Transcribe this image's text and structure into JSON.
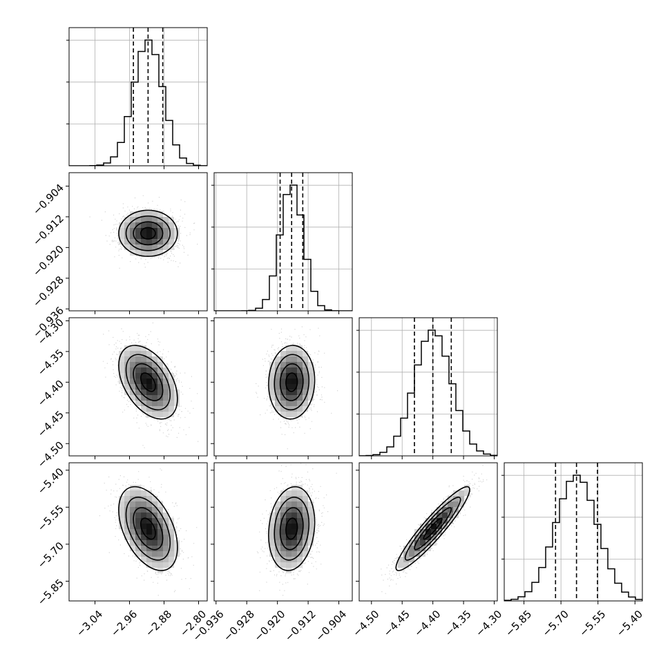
{
  "chart_data": {
    "type": "corner",
    "parameters": [
      {
        "xlim": [
          -3.1,
          -2.78
        ],
        "ticks": [
          -3.04,
          -2.96,
          -2.88,
          -2.8
        ],
        "tick_labels": [
          "−3.04",
          "−2.96",
          "−2.88",
          "−2.80"
        ],
        "quantiles": [
          -2.951,
          -2.917,
          -2.883
        ],
        "center": -2.917,
        "sd": 0.034
      },
      {
        "xlim": [
          -0.9365,
          -0.9005
        ],
        "ticks": [
          -0.936,
          -0.928,
          -0.92,
          -0.912,
          -0.904
        ],
        "tick_labels": [
          "−0.936",
          "−0.928",
          "−0.920",
          "−0.912",
          "−0.904"
        ],
        "quantiles": [
          -0.9193,
          -0.9163,
          -0.9134
        ],
        "center": -0.9163,
        "sd": 0.003
      },
      {
        "xlim": [
          -4.52,
          -4.295
        ],
        "ticks": [
          -4.5,
          -4.45,
          -4.4,
          -4.35,
          -4.3
        ],
        "tick_labels": [
          "−4.50",
          "−4.45",
          "−4.40",
          "−4.35",
          "−4.30"
        ],
        "quantiles": [
          -4.43,
          -4.4,
          -4.37
        ],
        "center": -4.4,
        "sd": 0.03
      },
      {
        "xlim": [
          -5.93,
          -5.37
        ],
        "ticks": [
          -5.85,
          -5.7,
          -5.55,
          -5.4
        ],
        "tick_labels": [
          "−5.85",
          "−5.70",
          "−5.55",
          "−5.40"
        ],
        "quantiles": [
          -5.722,
          -5.637,
          -5.552
        ],
        "center": -5.637,
        "sd": 0.085
      }
    ],
    "correlations": [
      [
        1,
        0,
        -0.45,
        -0.45
      ],
      [
        0,
        1,
        0.05,
        0.15
      ],
      [
        -0.45,
        0.05,
        1,
        0.93
      ],
      [
        -0.45,
        0.15,
        0.93,
        1
      ]
    ],
    "histogram_bins": 20,
    "contour_levels_sigma": [
      0.5,
      1.0,
      1.5,
      2.0
    ],
    "grid": true,
    "quantile_line_style": "dashed",
    "colors": {
      "lines": "#000000",
      "points": "#b0b0b0",
      "grid": "#b0b0b0"
    }
  }
}
